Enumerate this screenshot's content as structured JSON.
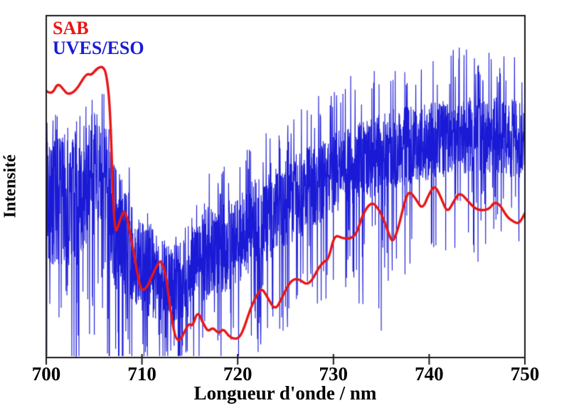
{
  "figure": {
    "background": "#ffffff",
    "frame_color": "#1a1a1a",
    "legend": [
      {
        "label": "SAB",
        "color": "#e81616"
      },
      {
        "label": "UVES/ESO",
        "color": "#1a1ad6"
      }
    ],
    "x_axis_title": "Longueur d'onde / nm",
    "y_axis_title": "Intensité"
  },
  "chart_data": {
    "type": "line",
    "title": "",
    "xlabel": "Longueur d'onde / nm",
    "ylabel": "Intensité",
    "xlim": [
      700,
      750
    ],
    "ylim": [
      0,
      1
    ],
    "x_ticks": [
      700,
      710,
      720,
      730,
      740,
      750
    ],
    "y_ticks": [],
    "grid": false,
    "legend_position": "top-left",
    "series": [
      {
        "name": "SAB",
        "color": "#e81616",
        "style": "smooth",
        "line_width": 3.4,
        "points": [
          [
            700.0,
            0.78
          ],
          [
            700.6,
            0.767
          ],
          [
            701.2,
            0.805
          ],
          [
            701.9,
            0.78
          ],
          [
            702.3,
            0.769
          ],
          [
            703.1,
            0.78
          ],
          [
            704.2,
            0.832
          ],
          [
            704.7,
            0.825
          ],
          [
            705.3,
            0.846
          ],
          [
            705.9,
            0.852
          ],
          [
            706.3,
            0.83
          ],
          [
            706.7,
            0.723
          ],
          [
            707.1,
            0.349
          ],
          [
            707.7,
            0.401
          ],
          [
            708.2,
            0.439
          ],
          [
            708.8,
            0.36
          ],
          [
            709.4,
            0.266
          ],
          [
            709.9,
            0.193
          ],
          [
            710.5,
            0.204
          ],
          [
            711.0,
            0.235
          ],
          [
            711.6,
            0.272
          ],
          [
            712.0,
            0.285
          ],
          [
            712.5,
            0.245
          ],
          [
            713.0,
            0.131
          ],
          [
            713.5,
            0.054
          ],
          [
            714.0,
            0.05
          ],
          [
            714.5,
            0.079
          ],
          [
            714.9,
            0.1
          ],
          [
            715.3,
            0.091
          ],
          [
            715.8,
            0.137
          ],
          [
            716.4,
            0.1
          ],
          [
            716.9,
            0.075
          ],
          [
            717.4,
            0.089
          ],
          [
            718.0,
            0.069
          ],
          [
            718.5,
            0.085
          ],
          [
            719.0,
            0.064
          ],
          [
            719.6,
            0.054
          ],
          [
            720.2,
            0.058
          ],
          [
            720.7,
            0.089
          ],
          [
            721.3,
            0.141
          ],
          [
            722.0,
            0.183
          ],
          [
            722.5,
            0.204
          ],
          [
            723.1,
            0.177
          ],
          [
            723.9,
            0.137
          ],
          [
            724.6,
            0.173
          ],
          [
            725.3,
            0.214
          ],
          [
            725.9,
            0.231
          ],
          [
            726.6,
            0.227
          ],
          [
            727.1,
            0.214
          ],
          [
            727.7,
            0.222
          ],
          [
            728.4,
            0.26
          ],
          [
            729.0,
            0.281
          ],
          [
            729.5,
            0.287
          ],
          [
            730.1,
            0.36
          ],
          [
            730.9,
            0.349
          ],
          [
            731.7,
            0.347
          ],
          [
            732.4,
            0.36
          ],
          [
            733.1,
            0.422
          ],
          [
            734.0,
            0.457
          ],
          [
            734.7,
            0.435
          ],
          [
            735.2,
            0.408
          ],
          [
            735.8,
            0.36
          ],
          [
            736.2,
            0.335
          ],
          [
            736.8,
            0.38
          ],
          [
            737.4,
            0.453
          ],
          [
            737.9,
            0.489
          ],
          [
            738.6,
            0.464
          ],
          [
            739.3,
            0.432
          ],
          [
            740.0,
            0.48
          ],
          [
            740.6,
            0.505
          ],
          [
            741.3,
            0.464
          ],
          [
            741.9,
            0.422
          ],
          [
            742.6,
            0.459
          ],
          [
            743.2,
            0.484
          ],
          [
            744.0,
            0.459
          ],
          [
            744.8,
            0.435
          ],
          [
            745.6,
            0.43
          ],
          [
            746.3,
            0.435
          ],
          [
            746.8,
            0.455
          ],
          [
            747.4,
            0.447
          ],
          [
            748.1,
            0.412
          ],
          [
            748.8,
            0.397
          ],
          [
            749.4,
            0.391
          ],
          [
            750.0,
            0.422
          ]
        ]
      },
      {
        "name": "UVES/ESO",
        "color": "#1a1ad6",
        "style": "noisy",
        "line_width": 1.1,
        "x_start": 700,
        "x_step": 1,
        "envelope_top": [
          0.703,
          0.723,
          0.734,
          0.723,
          0.744,
          0.796,
          0.807,
          0.786,
          0.8,
          0.464,
          0.443,
          0.422,
          0.401,
          0.36,
          0.38,
          0.401,
          0.547,
          0.557,
          0.568,
          0.578,
          0.588,
          0.62,
          0.64,
          0.661,
          0.682,
          0.703,
          0.723,
          0.734,
          0.776,
          0.807,
          0.796,
          0.827,
          0.834,
          0.838,
          0.848,
          0.869,
          0.879,
          0.869,
          0.875,
          0.869,
          0.879,
          0.89,
          0.9,
          0.921,
          0.917,
          0.904,
          0.9,
          0.9,
          0.89,
          0.879,
          0.869
        ],
        "envelope_mid": [
          0.449,
          0.464,
          0.464,
          0.453,
          0.484,
          0.536,
          0.553,
          0.391,
          0.349,
          0.287,
          0.266,
          0.245,
          0.235,
          0.21,
          0.225,
          0.235,
          0.287,
          0.308,
          0.318,
          0.328,
          0.349,
          0.37,
          0.391,
          0.407,
          0.428,
          0.449,
          0.47,
          0.484,
          0.505,
          0.526,
          0.543,
          0.553,
          0.563,
          0.574,
          0.584,
          0.595,
          0.605,
          0.615,
          0.62,
          0.624,
          0.63,
          0.636,
          0.64,
          0.644,
          0.649,
          0.651,
          0.651,
          0.649,
          0.644,
          0.64,
          0.636
        ],
        "band_halfwidth": [
          0.191,
          0.187,
          0.198,
          0.198,
          0.187,
          0.177,
          0.17,
          0.177,
          0.177,
          0.135,
          0.135,
          0.135,
          0.125,
          0.119,
          0.114,
          0.114,
          0.135,
          0.135,
          0.135,
          0.135,
          0.135,
          0.135,
          0.135,
          0.129,
          0.129,
          0.129,
          0.129,
          0.125,
          0.125,
          0.125,
          0.119,
          0.119,
          0.119,
          0.119,
          0.119,
          0.119,
          0.119,
          0.119,
          0.114,
          0.114,
          0.114,
          0.114,
          0.114,
          0.114,
          0.114,
          0.114,
          0.114,
          0.114,
          0.114,
          0.114,
          0.114
        ],
        "deep_spike_floor": [
          0.11,
          0.11,
          0.152,
          0.173,
          0.069,
          0.131,
          0.048,
          0.069,
          0.027,
          0.048,
          0.027,
          0.069,
          0.027,
          0.006,
          0.048,
          0.069,
          0.048,
          0.069,
          0.027,
          0.017,
          0.048,
          0.089,
          0.069,
          0.11,
          0.069,
          0.131,
          0.152,
          0.173,
          0.152,
          0.214,
          0.027,
          0.173,
          0.214,
          0.11,
          0.152,
          0.027,
          0.214,
          0.256,
          0.214,
          0.235,
          0.256,
          0.277,
          0.235,
          0.256,
          0.297,
          0.249,
          0.277,
          0.318,
          0.339,
          0.297,
          0.318
        ],
        "noise": {
          "seed": 12345,
          "samples": 2400,
          "up_spike_prob": 0.05,
          "mid_down_spike_prob": 0.06,
          "deep_spike_prob": 0.018
        }
      }
    ]
  }
}
